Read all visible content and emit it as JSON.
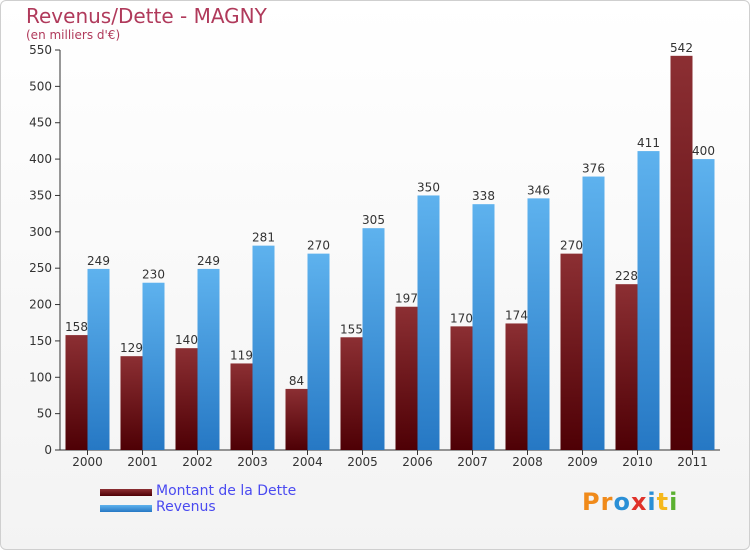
{
  "header": {
    "title": "Revenus/Dette - MAGNY",
    "subtitle": "(en milliers d'€)"
  },
  "legend": [
    {
      "label": "Montant de la Dette",
      "color": "#6b0f16"
    },
    {
      "label": "Revenus",
      "color": "#3a93dc"
    }
  ],
  "logo": {
    "text": "Proxiti",
    "colors": [
      "#f08a1a",
      "#f08a1a",
      "#2a8fd6",
      "#e0322a",
      "#2a8fd6",
      "#f5b81b",
      "#5ab030"
    ]
  },
  "chart_data": {
    "type": "bar",
    "categories": [
      "2000",
      "2001",
      "2002",
      "2003",
      "2004",
      "2005",
      "2006",
      "2007",
      "2008",
      "2009",
      "2010",
      "2011"
    ],
    "series": [
      {
        "name": "Montant de la Dette",
        "values": [
          158,
          129,
          140,
          119,
          84,
          155,
          197,
          170,
          174,
          270,
          228,
          542
        ]
      },
      {
        "name": "Revenus",
        "values": [
          249,
          230,
          249,
          281,
          270,
          305,
          350,
          338,
          346,
          376,
          411,
          400
        ]
      }
    ],
    "ylim": [
      0,
      550
    ],
    "yticks": [
      0,
      50,
      100,
      150,
      200,
      250,
      300,
      350,
      400,
      450,
      500,
      550
    ],
    "grid": false
  }
}
